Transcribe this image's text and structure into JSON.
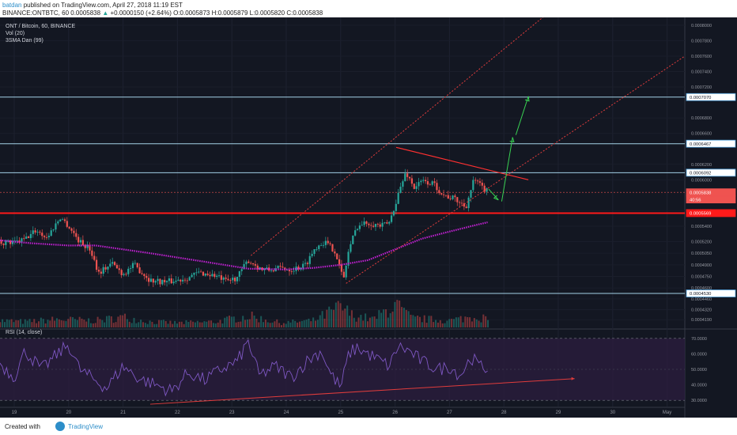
{
  "header": {
    "user": "batdan",
    "published": "published on TradingView.com, April 27, 2018 11:19 EST",
    "symbol": "BINANCE:ONTBTC, 60",
    "last": "0.0005838",
    "change_arrow": "▲",
    "change": "+0.0000150 (+2.64%)",
    "ohlc": "O:0.0005873 H:0.0005879 L:0.0005820 C:0.0005838"
  },
  "legend": {
    "pair": "ONT / Bitcoin, 60, BINANCE",
    "volume": "Vol (20)",
    "sma": "3SMA Dan (99)",
    "rsi": "RSI (14, close)"
  },
  "footer": {
    "created_with": "Created with",
    "brand": "TradingView"
  },
  "colors": {
    "background": "#131722",
    "up": "#26a69a",
    "down": "#ef5350",
    "sma": "#c021d1",
    "channel": "#e03c3c",
    "level": "#b3e5fc",
    "arrow": "#39d353",
    "rsi": "#7e57c2",
    "rsi_band": "#2a1d3d"
  },
  "chart_data": [
    {
      "type": "candlestick",
      "title": "ONT / Bitcoin, 60, BINANCE",
      "x_ticks": [
        "19",
        "20",
        "21",
        "22",
        "23",
        "24",
        "25",
        "26",
        "27",
        "28",
        "29",
        "30",
        "May"
      ],
      "y_ticks": [
        "0.0008000",
        "0.0007800",
        "0.0007600",
        "0.0007400",
        "0.0007200",
        "0.0006800",
        "0.0006600",
        "0.0006200",
        "0.0006000",
        "0.0005600",
        "0.0005400",
        "0.0005200",
        "0.0005050",
        "0.0004900",
        "0.0004750",
        "0.0004600",
        "0.0004460",
        "0.0004320",
        "0.0004190"
      ],
      "price_labels": [
        {
          "value": "0.0007070",
          "style": "level"
        },
        {
          "value": "0.0006467",
          "style": "level"
        },
        {
          "value": "0.0006092",
          "style": "level"
        },
        {
          "value": "0.0005838",
          "style": "last"
        },
        {
          "value": "40:56",
          "style": "countdown"
        },
        {
          "value": "0.0005569",
          "style": "support"
        },
        {
          "value": "0.0004530",
          "style": "level"
        }
      ],
      "close_path": [
        [
          18.7,
          0.00052
        ],
        [
          19.0,
          0.000518
        ],
        [
          19.2,
          0.000523
        ],
        [
          19.4,
          0.000535
        ],
        [
          19.6,
          0.000525
        ],
        [
          19.85,
          0.000552
        ],
        [
          20.0,
          0.00054
        ],
        [
          20.2,
          0.00052
        ],
        [
          20.4,
          0.00051
        ],
        [
          20.55,
          0.00048
        ],
        [
          20.8,
          0.000492
        ],
        [
          21.0,
          0.000478
        ],
        [
          21.2,
          0.00049
        ],
        [
          21.5,
          0.00047
        ],
        [
          21.8,
          0.000468
        ],
        [
          22.0,
          0.00047
        ],
        [
          22.2,
          0.000474
        ],
        [
          22.4,
          0.00048
        ],
        [
          22.7,
          0.000476
        ],
        [
          22.9,
          0.000468
        ],
        [
          23.1,
          0.000474
        ],
        [
          23.3,
          0.000496
        ],
        [
          23.55,
          0.000484
        ],
        [
          23.7,
          0.000483
        ],
        [
          23.9,
          0.000486
        ],
        [
          24.1,
          0.000484
        ],
        [
          24.35,
          0.00049
        ],
        [
          24.55,
          0.000514
        ],
        [
          24.7,
          0.00052
        ],
        [
          24.9,
          0.000508
        ],
        [
          25.05,
          0.00047
        ],
        [
          25.15,
          0.00051
        ],
        [
          25.3,
          0.00054
        ],
        [
          25.5,
          0.000545
        ],
        [
          25.75,
          0.00054
        ],
        [
          25.9,
          0.000545
        ],
        [
          26.05,
          0.00058
        ],
        [
          26.2,
          0.00061
        ],
        [
          26.35,
          0.00059
        ],
        [
          26.5,
          0.000598
        ],
        [
          26.7,
          0.000595
        ],
        [
          26.9,
          0.00058
        ],
        [
          27.1,
          0.000575
        ],
        [
          27.3,
          0.000565
        ],
        [
          27.45,
          0.0006
        ],
        [
          27.6,
          0.00059
        ],
        [
          27.72,
          0.0005838
        ]
      ],
      "sma_path": [
        [
          18.7,
          0.000522
        ],
        [
          19.3,
          0.000518
        ],
        [
          20.0,
          0.000515
        ],
        [
          20.5,
          0.000515
        ],
        [
          21.5,
          0.000505
        ],
        [
          22.5,
          0.000494
        ],
        [
          23.3,
          0.000485
        ],
        [
          24.0,
          0.000484
        ],
        [
          24.5,
          0.000486
        ],
        [
          25.0,
          0.00049
        ],
        [
          25.5,
          0.000496
        ],
        [
          26.0,
          0.00051
        ],
        [
          26.5,
          0.000524
        ],
        [
          27.0,
          0.000533
        ],
        [
          27.4,
          0.00054
        ],
        [
          27.7,
          0.000545
        ]
      ],
      "volume_path": [
        [
          18.7,
          0.3
        ],
        [
          19.2,
          0.25
        ],
        [
          19.8,
          0.35
        ],
        [
          20.5,
          0.3
        ],
        [
          21.0,
          0.45
        ],
        [
          21.5,
          0.25
        ],
        [
          22.0,
          0.2
        ],
        [
          22.7,
          0.25
        ],
        [
          23.3,
          0.5
        ],
        [
          23.9,
          0.2
        ],
        [
          24.5,
          0.3
        ],
        [
          25.0,
          0.9
        ],
        [
          25.2,
          0.55
        ],
        [
          25.6,
          0.35
        ],
        [
          26.0,
          1.0
        ],
        [
          26.3,
          0.4
        ],
        [
          27.0,
          0.3
        ],
        [
          27.5,
          0.5
        ],
        [
          27.72,
          0.35
        ]
      ]
    },
    {
      "type": "line",
      "title": "RSI (14, close)",
      "y_ticks": [
        "70.0000",
        "60.0000",
        "50.0000",
        "40.0000",
        "30.0000"
      ],
      "bands": [
        30,
        70
      ],
      "ylim": [
        26,
        74
      ],
      "values": [
        [
          18.7,
          55
        ],
        [
          19.0,
          45
        ],
        [
          19.2,
          62
        ],
        [
          19.5,
          50
        ],
        [
          19.8,
          60
        ],
        [
          20.0,
          66
        ],
        [
          20.2,
          50
        ],
        [
          20.4,
          45
        ],
        [
          20.7,
          38
        ],
        [
          21.0,
          52
        ],
        [
          21.3,
          44
        ],
        [
          21.6,
          40
        ],
        [
          21.9,
          36
        ],
        [
          22.2,
          48
        ],
        [
          22.5,
          43
        ],
        [
          22.8,
          50
        ],
        [
          23.1,
          55
        ],
        [
          23.3,
          68
        ],
        [
          23.5,
          46
        ],
        [
          23.8,
          52
        ],
        [
          24.1,
          45
        ],
        [
          24.4,
          56
        ],
        [
          24.65,
          62
        ],
        [
          24.8,
          48
        ],
        [
          25.0,
          38
        ],
        [
          25.15,
          60
        ],
        [
          25.3,
          64
        ],
        [
          25.6,
          58
        ],
        [
          25.9,
          52
        ],
        [
          26.05,
          65
        ],
        [
          26.25,
          62
        ],
        [
          26.5,
          55
        ],
        [
          26.8,
          50
        ],
        [
          27.0,
          52
        ],
        [
          27.2,
          46
        ],
        [
          27.4,
          58
        ],
        [
          27.55,
          52
        ],
        [
          27.72,
          50
        ]
      ]
    }
  ]
}
